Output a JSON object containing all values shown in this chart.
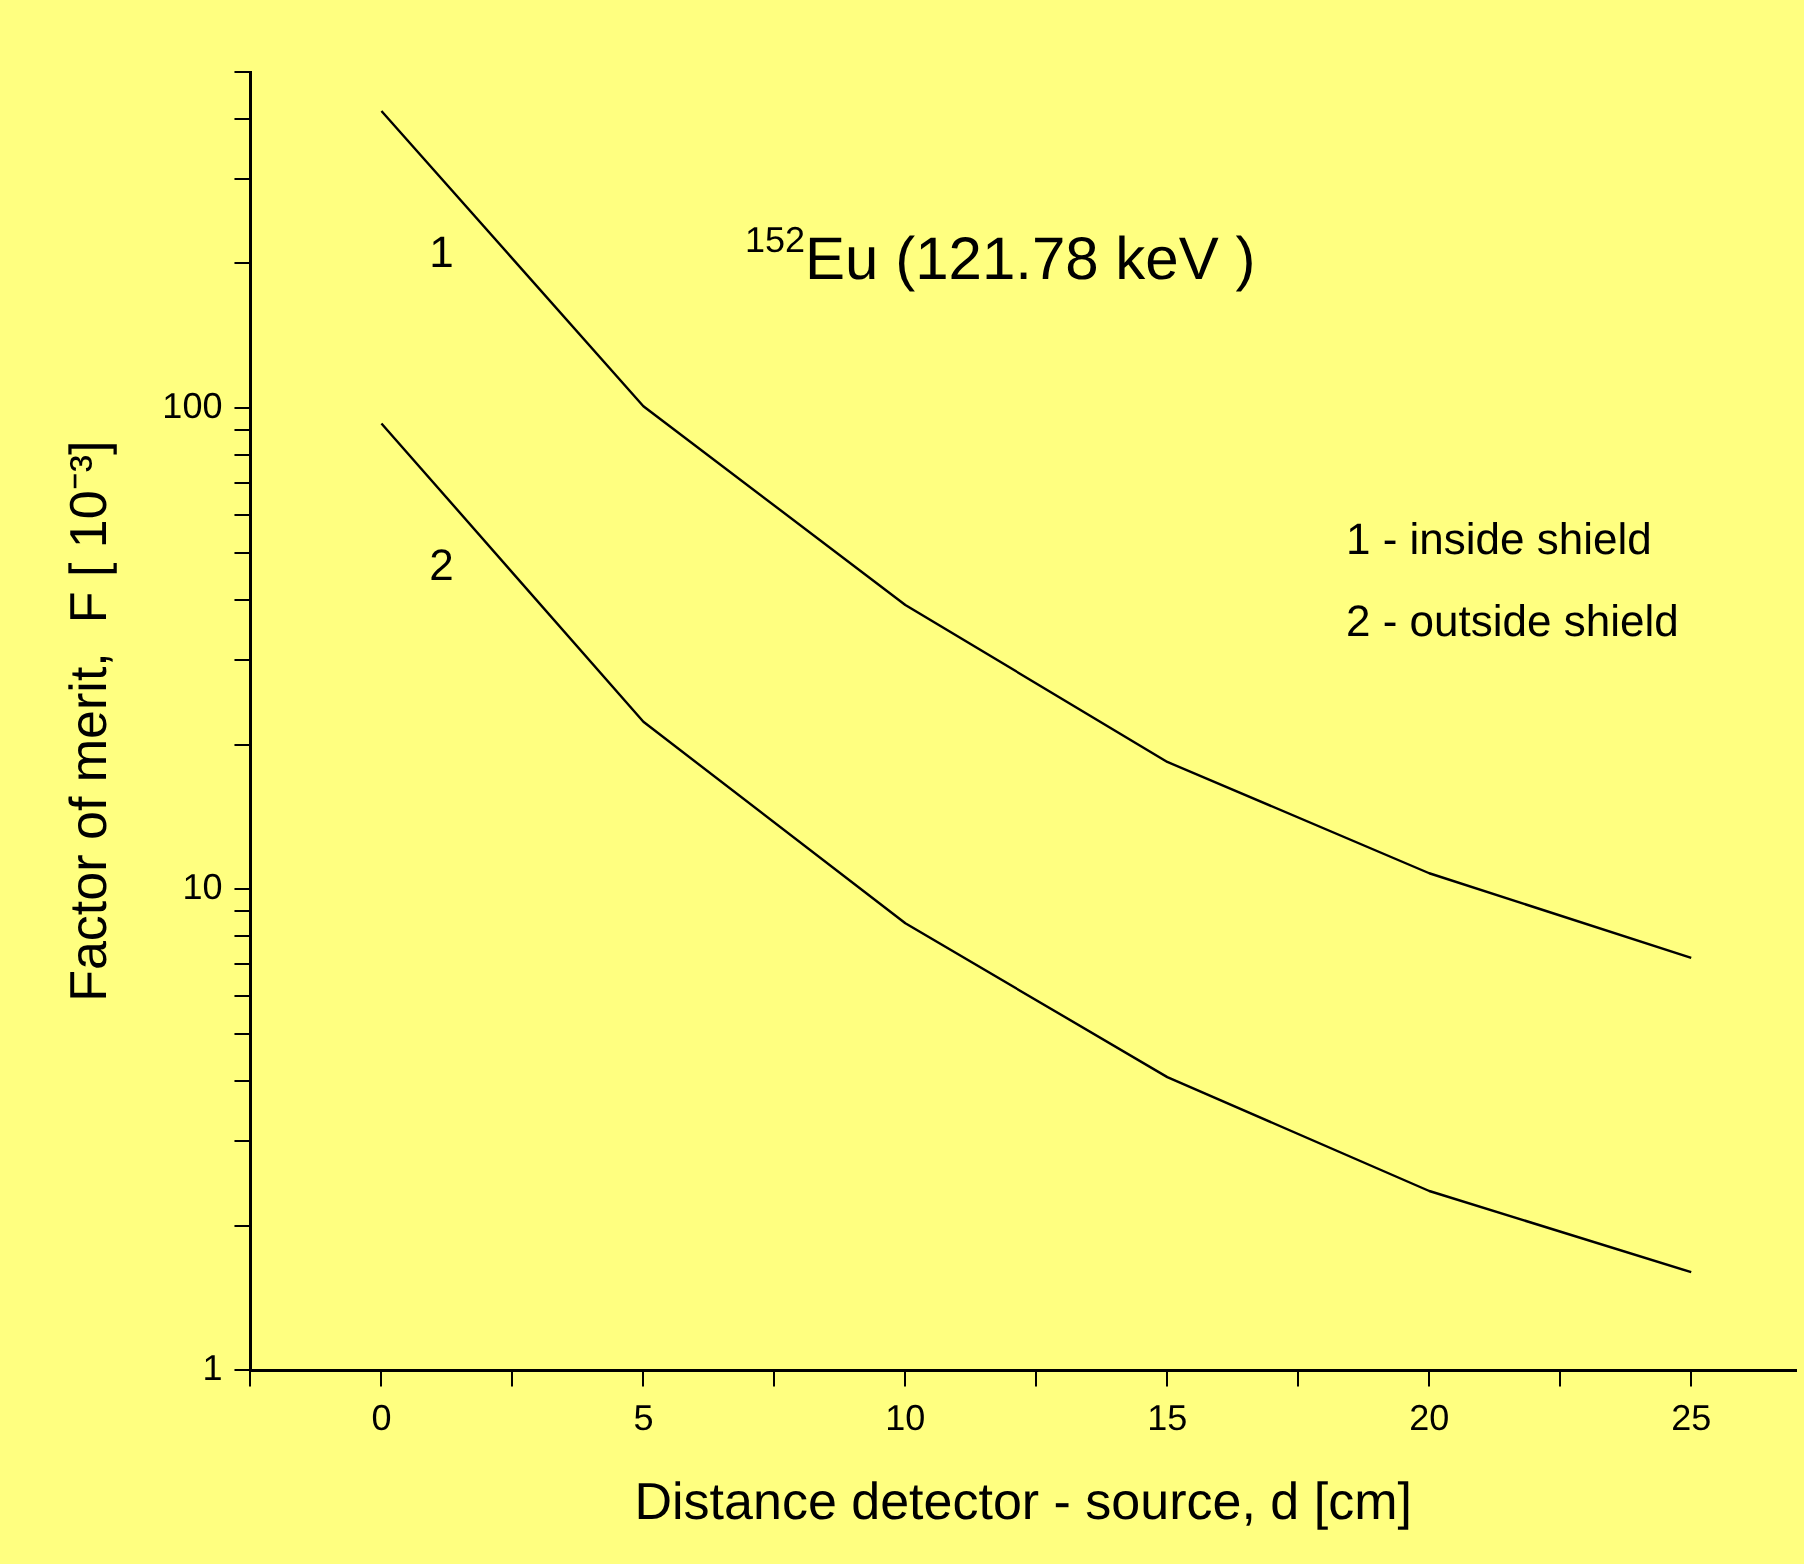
{
  "chart_data": {
    "type": "line",
    "title": "$^{152}$Eu (121.78 keV )",
    "xlabel": "Distance detector - source, d [cm]",
    "ylabel": "Factor of merit,  F [ 10⁻³]",
    "x": [
      0,
      5,
      10,
      15,
      20,
      25
    ],
    "series": [
      {
        "name": "1",
        "color": "#000000",
        "values": [
          415,
          101,
          39,
          18.4,
          10.8,
          7.2
        ]
      },
      {
        "name": "2",
        "color": "#000000",
        "values": [
          93,
          22.3,
          8.5,
          4.07,
          2.36,
          1.6
        ]
      }
    ],
    "annotations": [
      "1 - inside shield",
      "2 - outside shield"
    ],
    "log": "y",
    "xlim": [
      -2.5,
      27
    ],
    "ylim": [
      1,
      500
    ],
    "xticks": [
      {
        "value": -2.5,
        "label": null
      },
      0,
      {
        "value": 2.5,
        "label": null
      },
      5,
      {
        "value": 7.5,
        "label": null
      },
      10,
      {
        "value": 12.5,
        "label": null
      },
      15,
      {
        "value": 17.5,
        "label": null
      },
      20,
      {
        "value": 22.5,
        "label": null
      },
      25
    ],
    "yticks": [
      1,
      {
        "value": 2,
        "label": null
      },
      {
        "value": 3,
        "label": null
      },
      {
        "value": 4,
        "label": null
      },
      {
        "value": 5,
        "label": null
      },
      {
        "value": 6,
        "label": null
      },
      {
        "value": 7,
        "label": null
      },
      {
        "value": 8,
        "label": null
      },
      {
        "value": 9,
        "label": null
      },
      10,
      {
        "value": 20,
        "label": null
      },
      {
        "value": 30,
        "label": null
      },
      {
        "value": 40,
        "label": null
      },
      {
        "value": 50,
        "label": null
      },
      {
        "value": 60,
        "label": null
      },
      {
        "value": 70,
        "label": null
      },
      {
        "value": 80,
        "label": null
      },
      {
        "value": 90,
        "label": null
      },
      100,
      {
        "value": 200,
        "label": null
      },
      {
        "value": 300,
        "label": null
      },
      {
        "value": 400,
        "label": null
      },
      {
        "value": 500,
        "label": null
      }
    ],
    "grid": false,
    "legend": false,
    "marker": "none",
    "line_style": "solid"
  }
}
